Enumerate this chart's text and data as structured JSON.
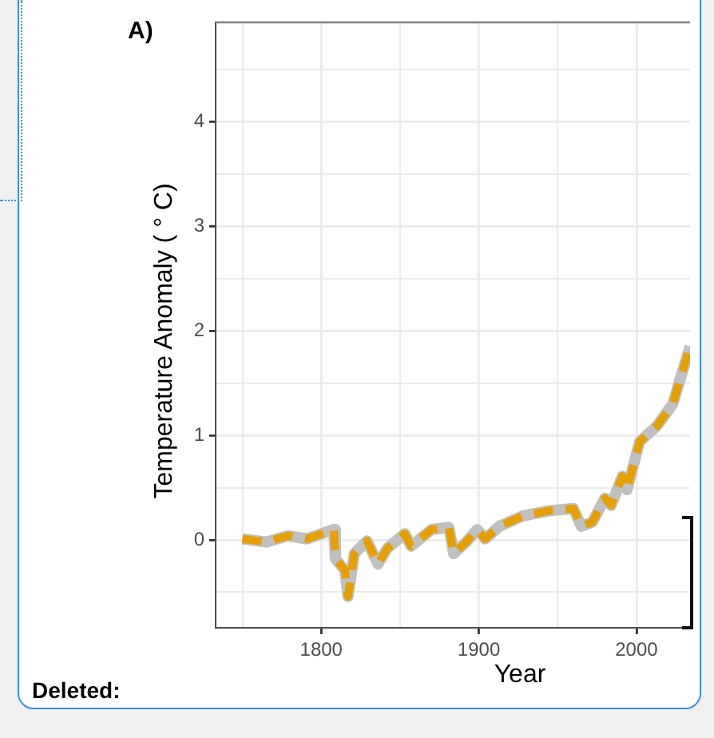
{
  "chart_data": {
    "type": "line",
    "title": "A)",
    "xlabel": "Year",
    "ylabel": "Temperature Anomaly ( ° C)",
    "x": [
      1750,
      1765,
      1779,
      1791,
      1808,
      1809,
      1815,
      1817,
      1821,
      1829,
      1836,
      1842,
      1853,
      1857,
      1870,
      1881,
      1884,
      1892,
      1899,
      1904,
      1913,
      1928,
      1945,
      1960,
      1965,
      1972,
      1980,
      1984,
      1991,
      1994,
      2002,
      2013,
      2023,
      2034
    ],
    "series": [
      {
        "color": "#c0c0c0",
        "line_style": "solid",
        "values": [
          0.01,
          -0.02,
          0.04,
          0.01,
          0.1,
          -0.18,
          -0.29,
          -0.54,
          -0.13,
          -0.01,
          -0.23,
          -0.08,
          0.06,
          -0.06,
          0.1,
          0.12,
          -0.13,
          -0.02,
          0.1,
          0.01,
          0.13,
          0.23,
          0.28,
          0.3,
          0.13,
          0.17,
          0.4,
          0.33,
          0.61,
          0.48,
          0.94,
          1.09,
          1.3,
          1.85
        ]
      },
      {
        "color": "#e69f00",
        "line_style": "dashed",
        "values": [
          0.01,
          -0.02,
          0.04,
          0.01,
          0.1,
          -0.18,
          -0.29,
          -0.54,
          -0.13,
          -0.01,
          -0.23,
          -0.08,
          0.06,
          -0.06,
          0.1,
          0.12,
          -0.13,
          -0.02,
          0.1,
          0.01,
          0.13,
          0.23,
          0.28,
          0.3,
          0.13,
          0.17,
          0.4,
          0.33,
          0.61,
          0.48,
          0.94,
          1.09,
          1.3,
          1.85
        ]
      }
    ],
    "xlim": [
      1733,
      2034
    ],
    "xticks": [
      {
        "value": 1750,
        "label": null
      },
      1800,
      {
        "value": 1850,
        "label": null
      },
      1900,
      {
        "value": 1950,
        "label": null
      },
      2000
    ],
    "ylim": [
      -0.84,
      4.95
    ],
    "yticks": [
      {
        "value": -0.5,
        "label": null
      },
      0,
      {
        "value": 0.5,
        "label": null
      },
      1,
      {
        "value": 1.5,
        "label": null
      },
      2,
      {
        "value": 2.5,
        "label": null
      },
      3,
      {
        "value": 3.5,
        "label": null
      },
      4,
      {
        "value": 4.5,
        "label": null
      }
    ],
    "grid": true,
    "legend": false,
    "marker": "none",
    "annotations": [
      "Deleted:"
    ]
  }
}
